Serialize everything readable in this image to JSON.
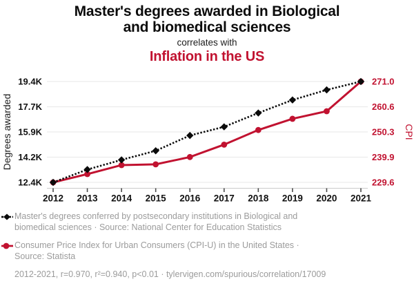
{
  "header": {
    "title_lines": [
      "Master's degrees awarded in Biological",
      "and biomedical sciences"
    ],
    "connector": "correlates with",
    "subtitle": "Inflation in the US"
  },
  "chart_data": {
    "type": "line",
    "x": [
      "2012",
      "2013",
      "2014",
      "2015",
      "2016",
      "2017",
      "2018",
      "2019",
      "2020",
      "2021"
    ],
    "series": [
      {
        "name": "Master's degrees conferred by postsecondary institutions in Biological and biomedical sciences",
        "axis": "left",
        "color": "#0b0b0b",
        "line_style": "dotted",
        "marker": "diamond",
        "values": [
          12440,
          13330,
          14000,
          14630,
          15690,
          16290,
          17250,
          18150,
          18850,
          19430
        ]
      },
      {
        "name": "Consumer Price Index for Urban Consumers (CPI-U) in the United States",
        "axis": "right",
        "color": "#c11230",
        "line_style": "solid",
        "marker": "circle",
        "values": [
          229.6,
          233.0,
          236.7,
          237.0,
          240.0,
          245.1,
          251.1,
          255.7,
          258.8,
          271.0
        ]
      }
    ],
    "left_axis": {
      "label": "Degrees awarded",
      "tick_labels": [
        "12.4K",
        "14.2K",
        "15.9K",
        "17.7K",
        "19.4K"
      ],
      "min": 12440,
      "max": 19430
    },
    "right_axis": {
      "label": "CPI",
      "tick_labels": [
        "229.6",
        "239.9",
        "250.3",
        "260.6",
        "271.0"
      ],
      "min": 229.6,
      "max": 271.0
    },
    "x_range": [
      "2012",
      "2021"
    ],
    "grid": true,
    "legend_position": "bottom"
  },
  "legend": {
    "items": [
      {
        "lines": [
          "Master's degrees conferred by postsecondary institutions in Biological and",
          "biomedical sciences · Source: National Center for Education Statistics"
        ]
      },
      {
        "lines": [
          "Consumer Price Index for Urban Consumers (CPI-U) in the United States ·",
          "Source: Statista"
        ]
      }
    ]
  },
  "footer": {
    "stats": "2012-2021, r=0.970, r²=0.940, p<0.01 · tylervigen.com/spurious/correlation/17009"
  },
  "colors": {
    "accent_red": "#c11230",
    "text_gray": "#9b9b9b",
    "grid": "#ececec",
    "axis_line": "#c9c9c9",
    "axis_tick": "#4a4a4a"
  }
}
